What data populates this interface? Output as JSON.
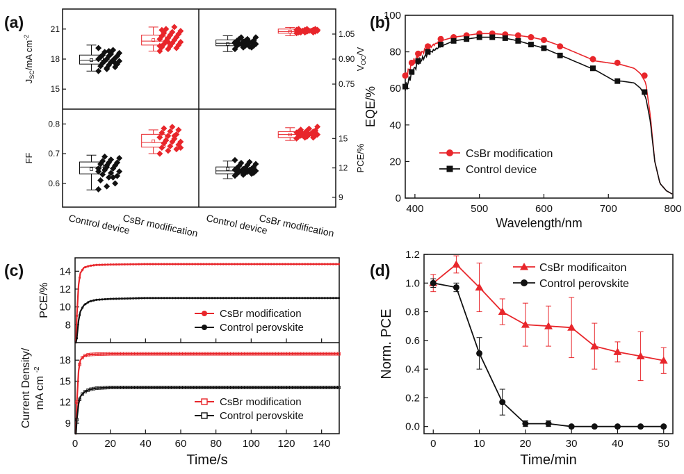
{
  "panel_labels": {
    "a": "(a)",
    "b": "(b)",
    "c": "(c)",
    "d": "(d)"
  },
  "colors": {
    "red": "#e8262b",
    "black": "#111111"
  },
  "chart_data": [
    {
      "id": "a",
      "type": "box",
      "groups": [
        "Control device",
        "CsBr modification"
      ],
      "subplots": [
        {
          "id": "jsc",
          "ylabel": "J_SC/mA cm^-2",
          "ylabel_base": "J",
          "ylabel_sub": "SC",
          "ylabel_rest": "/mA cm",
          "ylabel_sup": "-2",
          "axis_side": "left",
          "ylim": [
            13,
            23
          ],
          "yticks": [
            15,
            18,
            21
          ],
          "boxes": [
            {
              "group": "Control device",
              "whisker_low": 16.8,
              "q1": 17.5,
              "median": 17.9,
              "q3": 18.4,
              "whisker_high": 19.4,
              "mean": 17.9
            },
            {
              "group": "CsBr modification",
              "whisker_low": 18.8,
              "q1": 19.4,
              "median": 19.8,
              "q3": 20.4,
              "whisker_high": 21.2,
              "mean": 19.9
            }
          ],
          "points": {
            "Control device": [
              16.8,
              17.0,
              17.2,
              17.3,
              17.4,
              17.5,
              17.6,
              17.7,
              17.8,
              17.8,
              17.9,
              18.0,
              18.0,
              18.1,
              18.2,
              18.3,
              18.3,
              18.4,
              18.5,
              18.6,
              18.7,
              18.9,
              19.1,
              17.1,
              17.6,
              18.2,
              18.8
            ],
            "CsBr modification": [
              18.8,
              19.0,
              19.1,
              19.2,
              19.3,
              19.4,
              19.5,
              19.6,
              19.7,
              19.8,
              19.9,
              20.0,
              20.1,
              20.2,
              20.3,
              20.4,
              20.5,
              20.6,
              20.7,
              20.8,
              21.0,
              21.2,
              19.3,
              19.7,
              20.2,
              20.9
            ]
          }
        },
        {
          "id": "voc",
          "ylabel": "V_OC/V",
          "ylabel_base": "V",
          "ylabel_sub": "OC",
          "ylabel_rest": "/V",
          "ylabel_sup": "",
          "axis_side": "right",
          "ylim": [
            0.6,
            1.2
          ],
          "yticks": [
            0.75,
            0.9,
            1.05
          ],
          "boxes": [
            {
              "group": "Control device",
              "whisker_low": 0.945,
              "q1": 0.98,
              "median": 0.995,
              "q3": 1.015,
              "whisker_high": 1.04,
              "mean": 0.99
            },
            {
              "group": "CsBr modification",
              "whisker_low": 1.04,
              "q1": 1.055,
              "median": 1.065,
              "q3": 1.08,
              "whisker_high": 1.09,
              "mean": 1.065
            }
          ],
          "points": {
            "Control device": [
              0.96,
              0.97,
              0.97,
              0.98,
              0.98,
              0.98,
              0.99,
              0.99,
              0.99,
              0.99,
              1.0,
              1.0,
              1.0,
              1.0,
              1.01,
              1.01,
              1.01,
              1.02,
              1.02,
              1.03,
              1.03,
              0.975,
              0.995,
              1.005
            ],
            "CsBr modification": [
              1.055,
              1.06,
              1.06,
              1.06,
              1.065,
              1.065,
              1.065,
              1.07,
              1.07,
              1.07,
              1.07,
              1.075,
              1.075,
              1.075,
              1.08,
              1.08,
              1.08,
              1.06,
              1.07,
              1.075
            ]
          }
        },
        {
          "id": "ff",
          "ylabel": "FF",
          "ylabel_base": "FF",
          "ylabel_sub": "",
          "ylabel_rest": "",
          "ylabel_sup": "",
          "axis_side": "left",
          "ylim": [
            0.52,
            0.85
          ],
          "yticks": [
            0.6,
            0.7,
            0.8
          ],
          "boxes": [
            {
              "group": "Control device",
              "whisker_low": 0.578,
              "q1": 0.632,
              "median": 0.655,
              "q3": 0.672,
              "whisker_high": 0.695,
              "mean": 0.648
            },
            {
              "group": "CsBr modification",
              "whisker_low": 0.7,
              "q1": 0.722,
              "median": 0.738,
              "q3": 0.765,
              "whisker_high": 0.78,
              "mean": 0.742
            }
          ],
          "points": {
            "Control device": [
              0.58,
              0.59,
              0.6,
              0.61,
              0.62,
              0.625,
              0.63,
              0.635,
              0.64,
              0.645,
              0.65,
              0.65,
              0.655,
              0.66,
              0.665,
              0.67,
              0.67,
              0.675,
              0.68,
              0.685,
              0.69,
              0.62,
              0.64,
              0.66
            ],
            "CsBr modification": [
              0.7,
              0.71,
              0.715,
              0.72,
              0.725,
              0.73,
              0.735,
              0.74,
              0.74,
              0.745,
              0.75,
              0.755,
              0.76,
              0.765,
              0.77,
              0.775,
              0.78,
              0.785,
              0.79,
              0.72,
              0.745,
              0.76
            ]
          }
        },
        {
          "id": "pce",
          "ylabel": "PCE/%",
          "ylabel_base": "PCE/%",
          "ylabel_sub": "",
          "ylabel_rest": "",
          "ylabel_sup": "",
          "axis_side": "right",
          "ylim": [
            8,
            18
          ],
          "yticks": [
            9,
            12,
            15
          ],
          "boxes": [
            {
              "group": "Control device",
              "whisker_low": 10.9,
              "q1": 11.4,
              "median": 11.7,
              "q3": 12.1,
              "whisker_high": 12.7,
              "mean": 11.9
            },
            {
              "group": "CsBr modification",
              "whisker_low": 14.8,
              "q1": 15.1,
              "median": 15.4,
              "q3": 15.7,
              "whisker_high": 16.1,
              "mean": 15.4
            }
          ],
          "points": {
            "Control device": [
              11.2,
              11.3,
              11.4,
              11.4,
              11.5,
              11.5,
              11.6,
              11.6,
              11.7,
              11.7,
              11.8,
              11.8,
              11.9,
              11.9,
              12.0,
              12.0,
              12.1,
              12.2,
              12.3,
              12.4,
              12.5,
              12.6,
              12.8,
              11.6
            ],
            "CsBr modification": [
              15.0,
              15.1,
              15.1,
              15.2,
              15.2,
              15.3,
              15.3,
              15.4,
              15.4,
              15.5,
              15.5,
              15.6,
              15.6,
              15.7,
              15.7,
              15.8,
              15.8,
              15.9,
              16.0,
              16.2,
              15.3,
              15.5
            ]
          }
        }
      ]
    },
    {
      "id": "b",
      "type": "line",
      "xlabel": "Wavelength/nm",
      "ylabel": "EQE/%",
      "xlim": [
        385,
        800
      ],
      "ylim": [
        0,
        100
      ],
      "xticks": [
        400,
        500,
        600,
        700,
        800
      ],
      "yticks": [
        0,
        20,
        40,
        60,
        80,
        100
      ],
      "legend": "center-left",
      "series": [
        {
          "name": "CsBr modification",
          "color": "#e8262b",
          "marker": "circle",
          "x": [
            385,
            395,
            405,
            420,
            440,
            460,
            480,
            500,
            520,
            540,
            560,
            580,
            600,
            620,
            640,
            660,
            680,
            700,
            720,
            740,
            750,
            758,
            765,
            772,
            780,
            790,
            800
          ],
          "y": [
            66,
            73,
            78,
            82,
            86,
            88,
            89,
            90,
            90,
            89.5,
            89,
            88,
            86.5,
            84,
            81,
            78,
            75,
            74,
            73,
            71,
            68,
            63,
            45,
            20,
            8,
            4,
            2
          ]
        },
        {
          "name": "Control device",
          "color": "#111111",
          "marker": "square",
          "x": [
            385,
            395,
            405,
            420,
            440,
            460,
            480,
            500,
            520,
            540,
            560,
            580,
            600,
            620,
            640,
            660,
            680,
            700,
            710,
            720,
            740,
            750,
            758,
            765,
            772,
            780,
            790,
            800
          ],
          "y": [
            60,
            68,
            74,
            79,
            83,
            86,
            87,
            88,
            88,
            87.5,
            86,
            84,
            82,
            79,
            76,
            73,
            70,
            66,
            64,
            64,
            63,
            60,
            55,
            42,
            20,
            8,
            4,
            2
          ]
        }
      ],
      "markers": {
        "CsBr modification": {
          "x": [
            385,
            395,
            405,
            420,
            440,
            460,
            480,
            500,
            520,
            540,
            560,
            580,
            600,
            625,
            676,
            714,
            756
          ],
          "y": [
            67,
            74,
            79,
            83,
            87,
            88,
            89,
            90,
            90,
            89.5,
            89,
            88,
            86.5,
            83,
            76,
            74,
            67
          ]
        },
        "Control device": {
          "x": [
            385,
            395,
            405,
            420,
            440,
            460,
            480,
            500,
            520,
            540,
            560,
            580,
            600,
            625,
            676,
            714,
            756
          ],
          "y": [
            61,
            69,
            75,
            80,
            84,
            86,
            87,
            88,
            88,
            87.5,
            86,
            84,
            82,
            78,
            71,
            64,
            58
          ]
        }
      }
    },
    {
      "id": "c",
      "type": "line",
      "xlabel": "Time/s",
      "xlim": [
        0,
        150
      ],
      "xticks": [
        0,
        20,
        40,
        60,
        80,
        100,
        120,
        140
      ],
      "subplots": [
        {
          "id": "pce",
          "ylabel": "PCE/%",
          "ylim": [
            6,
            15.5
          ],
          "yticks": [
            8,
            10,
            12,
            14
          ],
          "series": [
            {
              "name": "CsBr modification",
              "color": "#e8262b",
              "marker": "filled",
              "steady": 14.8,
              "x": [
                0,
                1,
                2,
                3,
                5,
                8,
                12,
                20,
                40,
                80,
                150
              ],
              "y": [
                0,
                9,
                12.5,
                13.8,
                14.4,
                14.6,
                14.7,
                14.75,
                14.8,
                14.8,
                14.8
              ]
            },
            {
              "name": "Control perovskite",
              "color": "#111111",
              "marker": "filled",
              "steady": 11.0,
              "x": [
                0,
                1,
                2,
                3,
                5,
                8,
                12,
                20,
                40,
                80,
                150
              ],
              "y": [
                0,
                6.5,
                8.5,
                9.5,
                10.2,
                10.6,
                10.8,
                10.9,
                11.0,
                11.0,
                11.0
              ]
            }
          ]
        },
        {
          "id": "jsc",
          "ylabel": "Current Density/ mA cm^-2",
          "ylabel_line1": "Current Density/",
          "ylabel_line2": "mA cm",
          "ylabel_sup": "-2",
          "ylim": [
            7.5,
            20.5
          ],
          "yticks": [
            9,
            12,
            15,
            18
          ],
          "series": [
            {
              "name": "CsBr modification",
              "color": "#e8262b",
              "marker": "open",
              "steady": 18.9,
              "x": [
                0,
                1,
                2,
                3,
                5,
                8,
                12,
                20,
                40,
                80,
                150
              ],
              "y": [
                0,
                12,
                16.5,
                18,
                18.6,
                18.8,
                18.85,
                18.9,
                18.9,
                18.9,
                18.9
              ]
            },
            {
              "name": "Control perovskite",
              "color": "#111111",
              "marker": "open",
              "steady": 14.1,
              "x": [
                0,
                1,
                2,
                3,
                5,
                8,
                12,
                20,
                40,
                80,
                150
              ],
              "y": [
                0,
                9.5,
                11.8,
                12.8,
                13.4,
                13.8,
                14.0,
                14.1,
                14.1,
                14.1,
                14.1
              ]
            }
          ]
        }
      ]
    },
    {
      "id": "d",
      "type": "line",
      "xlabel": "Time/min",
      "ylabel": "Norm. PCE",
      "xlim": [
        -2,
        52
      ],
      "ylim": [
        -0.05,
        1.2
      ],
      "xticks": [
        0,
        10,
        20,
        30,
        40,
        50
      ],
      "yticks": [
        0.0,
        0.2,
        0.4,
        0.6,
        0.8,
        1.0,
        1.2
      ],
      "legend": "top-right",
      "series": [
        {
          "name": "CsBr modificaiton",
          "color": "#e8262b",
          "marker": "triangle",
          "x": [
            0,
            5,
            10,
            15,
            20,
            25,
            30,
            35,
            40,
            45,
            50
          ],
          "y": [
            1.0,
            1.13,
            0.97,
            0.8,
            0.71,
            0.7,
            0.69,
            0.56,
            0.52,
            0.49,
            0.46
          ],
          "err": [
            0.06,
            0.06,
            0.17,
            0.09,
            0.15,
            0.14,
            0.21,
            0.16,
            0.07,
            0.17,
            0.09
          ]
        },
        {
          "name": "Control perovskite",
          "color": "#111111",
          "marker": "circle",
          "x": [
            0,
            5,
            10,
            15,
            20,
            25,
            30,
            35,
            40,
            45,
            50
          ],
          "y": [
            1.0,
            0.97,
            0.51,
            0.17,
            0.02,
            0.02,
            0.0,
            0.0,
            0.0,
            0.0,
            0.0
          ],
          "err": [
            0.03,
            0.03,
            0.11,
            0.09,
            0.02,
            0.02,
            0.005,
            0.005,
            0.005,
            0.005,
            0.005
          ]
        }
      ]
    }
  ]
}
